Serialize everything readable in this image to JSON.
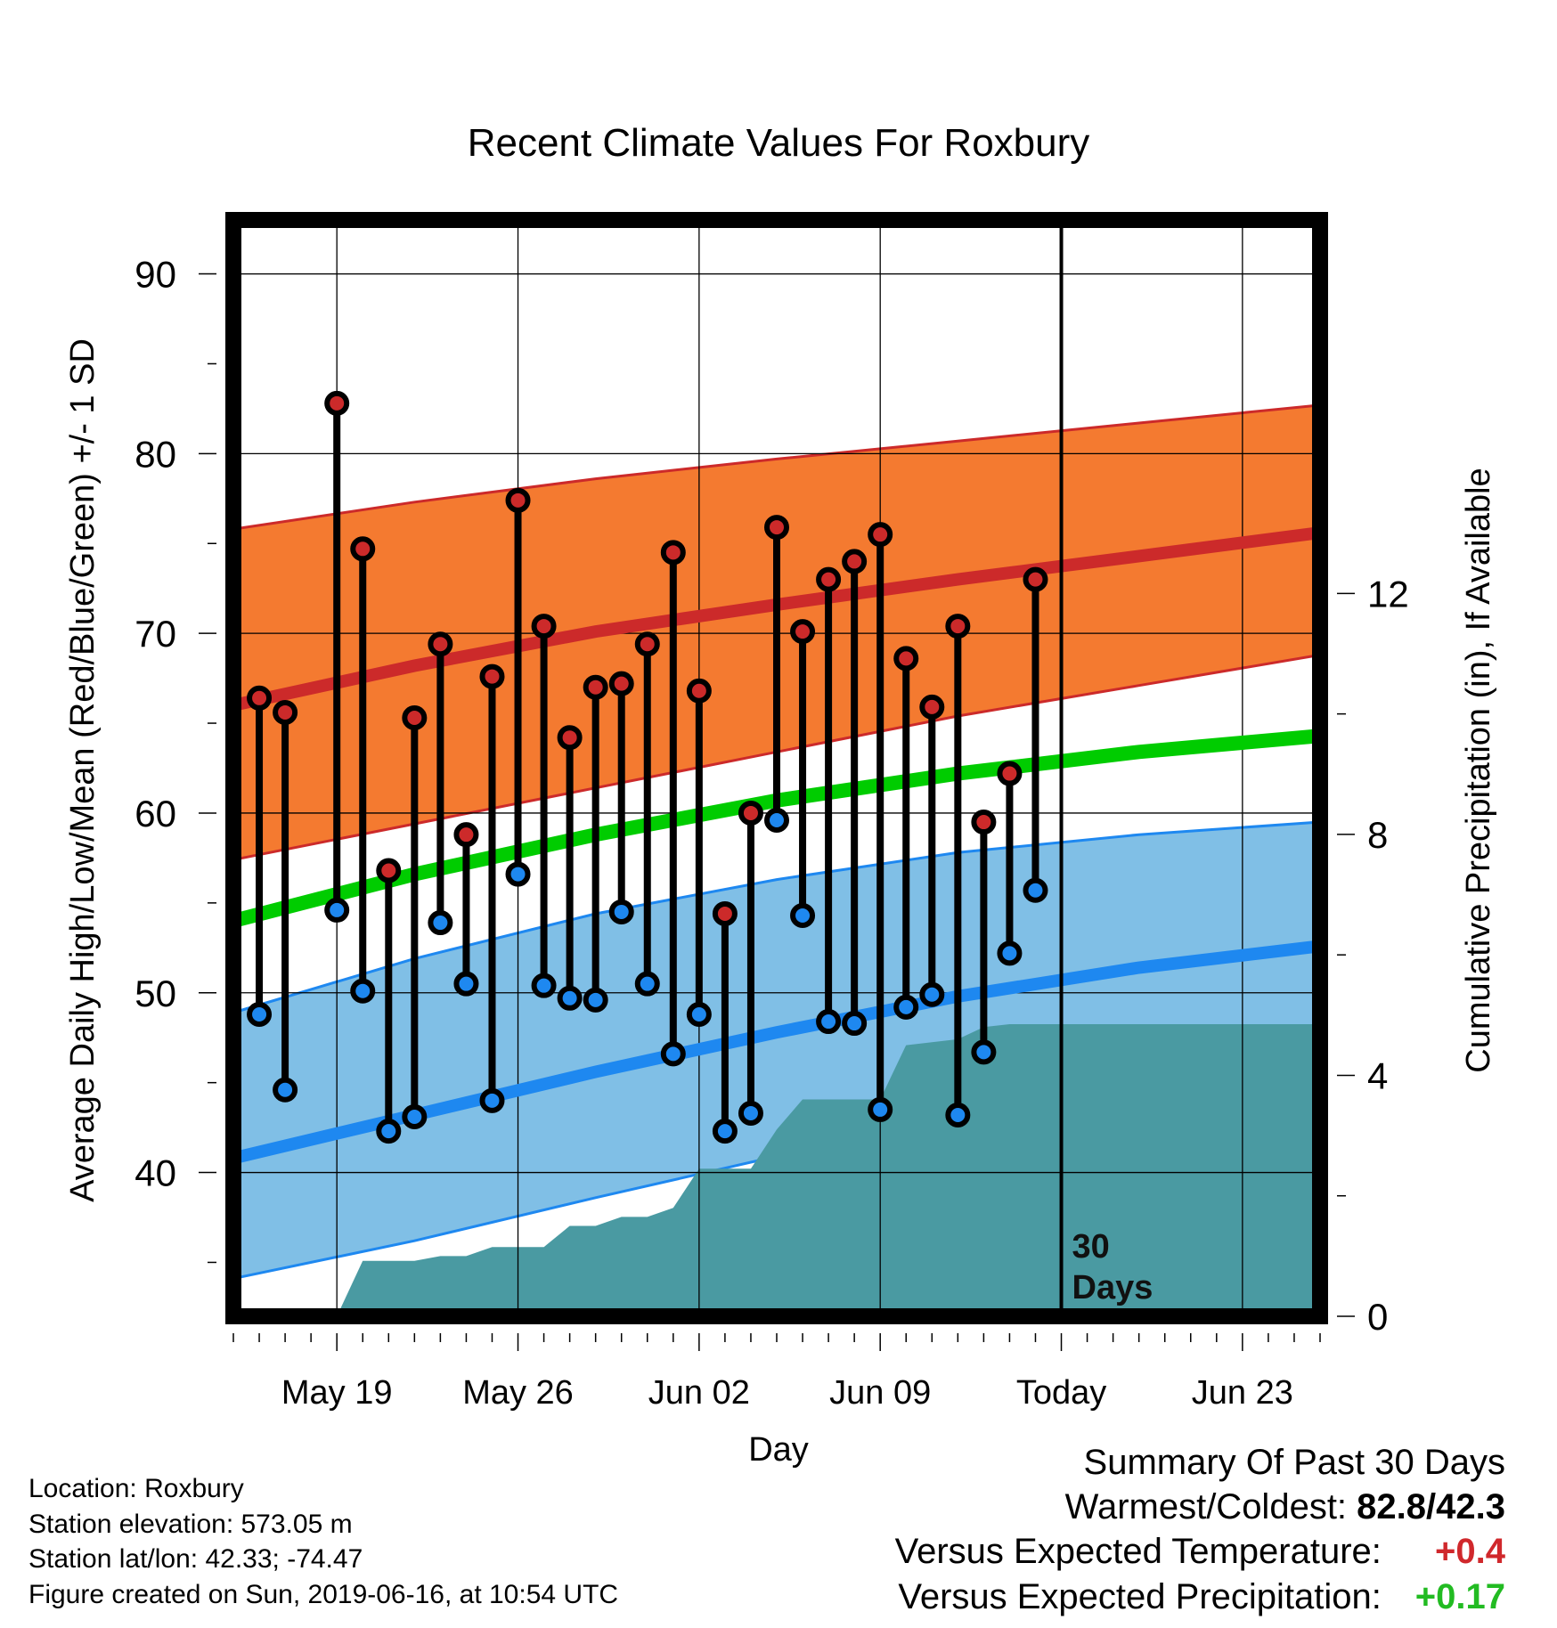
{
  "chart_data": {
    "type": "line",
    "title": "Recent Climate Values For Roxbury",
    "xlabel": "Day",
    "ylabel": "Average Daily High/Low/Mean (Red/Blue/Green) +/- 1 SD",
    "y2label": "Cumulative Precipitation (in), If Available",
    "ylim": [
      32,
      93
    ],
    "y2lim": [
      0,
      18.2
    ],
    "yticks": [
      40,
      50,
      60,
      70,
      80,
      90
    ],
    "y2ticks": [
      0,
      4,
      8,
      12
    ],
    "xrange": [
      "2019-05-15",
      "2019-06-26"
    ],
    "xticks": [
      {
        "date": "2019-05-19",
        "label": "May 19"
      },
      {
        "date": "2019-05-26",
        "label": "May 26"
      },
      {
        "date": "2019-06-02",
        "label": "Jun 02"
      },
      {
        "date": "2019-06-09",
        "label": "Jun 09"
      },
      {
        "date": "2019-06-16",
        "label": "Today"
      },
      {
        "date": "2019-06-23",
        "label": "Jun 23"
      }
    ],
    "today_marker": {
      "date": "2019-06-16",
      "label_line1": "30",
      "label_line2": "Days"
    },
    "grid": true,
    "colors": {
      "high": "#cc2a2a",
      "high_band": "#f47a30",
      "low": "#1e88f0",
      "low_band": "#80bfe6",
      "mean": "#00cc00",
      "precip": "#4a9aa2"
    },
    "normals": {
      "dates": [
        "2019-05-15",
        "2019-05-22",
        "2019-05-29",
        "2019-06-05",
        "2019-06-12",
        "2019-06-19",
        "2019-06-26"
      ],
      "high_mean": [
        66.0,
        68.2,
        70.1,
        71.6,
        73.0,
        74.3,
        75.6
      ],
      "high_upper": [
        75.8,
        77.3,
        78.6,
        79.7,
        80.7,
        81.7,
        82.7
      ],
      "high_lower": [
        57.4,
        59.4,
        61.4,
        63.4,
        65.4,
        67.1,
        68.8
      ],
      "mean": [
        54.0,
        56.6,
        58.8,
        60.7,
        62.2,
        63.4,
        64.3
      ],
      "low_mean": [
        40.8,
        43.2,
        45.6,
        47.8,
        49.8,
        51.4,
        52.6
      ],
      "low_upper": [
        48.9,
        51.9,
        54.4,
        56.3,
        57.8,
        58.8,
        59.5
      ],
      "low_lower": [
        34.1,
        36.2,
        38.6,
        40.9,
        43.0,
        45.0,
        46.8
      ]
    },
    "observed": [
      {
        "date": "2019-05-16",
        "high": 66.4,
        "low": 48.8
      },
      {
        "date": "2019-05-17",
        "high": 65.6,
        "low": 44.6
      },
      {
        "date": "2019-05-19",
        "high": 82.8,
        "low": 54.6
      },
      {
        "date": "2019-05-20",
        "high": 74.7,
        "low": 50.1
      },
      {
        "date": "2019-05-21",
        "high": 56.8,
        "low": 42.3
      },
      {
        "date": "2019-05-22",
        "high": 65.3,
        "low": 43.1
      },
      {
        "date": "2019-05-23",
        "high": 69.4,
        "low": 53.9
      },
      {
        "date": "2019-05-24",
        "high": 58.8,
        "low": 50.5
      },
      {
        "date": "2019-05-25",
        "high": 67.6,
        "low": 44.0
      },
      {
        "date": "2019-05-26",
        "high": 77.4,
        "low": 56.6
      },
      {
        "date": "2019-05-27",
        "high": 70.4,
        "low": 50.4
      },
      {
        "date": "2019-05-28",
        "high": 64.2,
        "low": 49.7
      },
      {
        "date": "2019-05-29",
        "high": 67.0,
        "low": 49.6
      },
      {
        "date": "2019-05-30",
        "high": 67.2,
        "low": 54.5
      },
      {
        "date": "2019-05-31",
        "high": 69.4,
        "low": 50.5
      },
      {
        "date": "2019-06-01",
        "high": 74.5,
        "low": 46.6
      },
      {
        "date": "2019-06-02",
        "high": 66.8,
        "low": 48.8
      },
      {
        "date": "2019-06-03",
        "high": 54.4,
        "low": 42.3
      },
      {
        "date": "2019-06-04",
        "high": 60.0,
        "low": 43.3
      },
      {
        "date": "2019-06-05",
        "high": 75.9,
        "low": 59.6
      },
      {
        "date": "2019-06-06",
        "high": 70.1,
        "low": 54.3
      },
      {
        "date": "2019-06-07",
        "high": 73.0,
        "low": 48.4
      },
      {
        "date": "2019-06-08",
        "high": 74.0,
        "low": 48.3
      },
      {
        "date": "2019-06-09",
        "high": 75.5,
        "low": 43.5
      },
      {
        "date": "2019-06-10",
        "high": 68.6,
        "low": 49.2
      },
      {
        "date": "2019-06-11",
        "high": 65.9,
        "low": 49.9
      },
      {
        "date": "2019-06-12",
        "high": 70.4,
        "low": 43.2
      },
      {
        "date": "2019-06-13",
        "high": 59.5,
        "low": 46.7
      },
      {
        "date": "2019-06-14",
        "high": 62.2,
        "low": 52.2
      },
      {
        "date": "2019-06-15",
        "high": 73.0,
        "low": 55.7
      }
    ],
    "precip_cumulative": [
      {
        "date": "2019-05-16",
        "value": 0
      },
      {
        "date": "2019-05-18",
        "value": 0
      },
      {
        "date": "2019-05-19",
        "value": 0
      },
      {
        "date": "2019-05-20",
        "value": 0.92
      },
      {
        "date": "2019-05-21",
        "value": 0.92
      },
      {
        "date": "2019-05-22",
        "value": 0.92
      },
      {
        "date": "2019-05-23",
        "value": 1.0
      },
      {
        "date": "2019-05-24",
        "value": 1.0
      },
      {
        "date": "2019-05-25",
        "value": 1.15
      },
      {
        "date": "2019-05-26",
        "value": 1.15
      },
      {
        "date": "2019-05-27",
        "value": 1.15
      },
      {
        "date": "2019-05-28",
        "value": 1.5
      },
      {
        "date": "2019-05-29",
        "value": 1.5
      },
      {
        "date": "2019-05-30",
        "value": 1.65
      },
      {
        "date": "2019-05-31",
        "value": 1.65
      },
      {
        "date": "2019-06-01",
        "value": 1.8
      },
      {
        "date": "2019-06-02",
        "value": 2.45
      },
      {
        "date": "2019-06-03",
        "value": 2.45
      },
      {
        "date": "2019-06-04",
        "value": 2.45
      },
      {
        "date": "2019-06-05",
        "value": 3.1
      },
      {
        "date": "2019-06-06",
        "value": 3.6
      },
      {
        "date": "2019-06-07",
        "value": 3.6
      },
      {
        "date": "2019-06-08",
        "value": 3.6
      },
      {
        "date": "2019-06-09",
        "value": 3.6
      },
      {
        "date": "2019-06-10",
        "value": 4.5
      },
      {
        "date": "2019-06-11",
        "value": 4.55
      },
      {
        "date": "2019-06-12",
        "value": 4.6
      },
      {
        "date": "2019-06-13",
        "value": 4.8
      },
      {
        "date": "2019-06-14",
        "value": 4.85
      },
      {
        "date": "2019-06-15",
        "value": 4.85
      },
      {
        "date": "2019-06-26",
        "value": 4.85
      }
    ]
  },
  "info": {
    "location": "Location: Roxbury",
    "elevation": "Station elevation: 573.05 m",
    "latlon": "Station lat/lon: 42.33; -74.47",
    "created": "Figure created on Sun, 2019-06-16, at 10:54 UTC"
  },
  "summary": {
    "title": "Summary Of Past 30 Days",
    "warm_cold_label": "Warmest/Coldest:",
    "warm_cold_value": "82.8/42.3",
    "temp_label": "Versus Expected Temperature:",
    "temp_value": "+0.4",
    "temp_color": "#d0282c",
    "precip_label": "Versus Expected Precipitation:",
    "precip_value": "+0.17",
    "precip_color": "#22bb22"
  }
}
